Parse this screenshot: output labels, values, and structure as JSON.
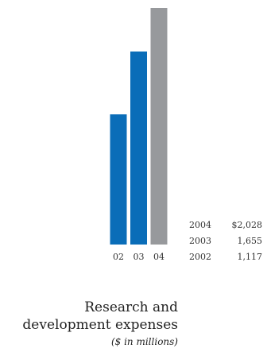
{
  "chart_data": {
    "type": "bar",
    "title": "Research and development expenses",
    "subtitle": "($ in millions)",
    "categories": [
      "02",
      "03",
      "04"
    ],
    "years": [
      "2002",
      "2003",
      "2004"
    ],
    "values": [
      1117,
      1655,
      2028
    ],
    "ylim": [
      0,
      2028
    ],
    "colors": [
      "#0a6db8",
      "#0a6db8",
      "#97999c"
    ],
    "legend_values": [
      {
        "year": "2004",
        "value": "$2,028"
      },
      {
        "year": "2003",
        "value": "1,655"
      },
      {
        "year": "2002",
        "value": "1,117"
      }
    ],
    "grid": false
  },
  "caption": {
    "title": "Research and development expenses",
    "units": "($ in millions)"
  }
}
